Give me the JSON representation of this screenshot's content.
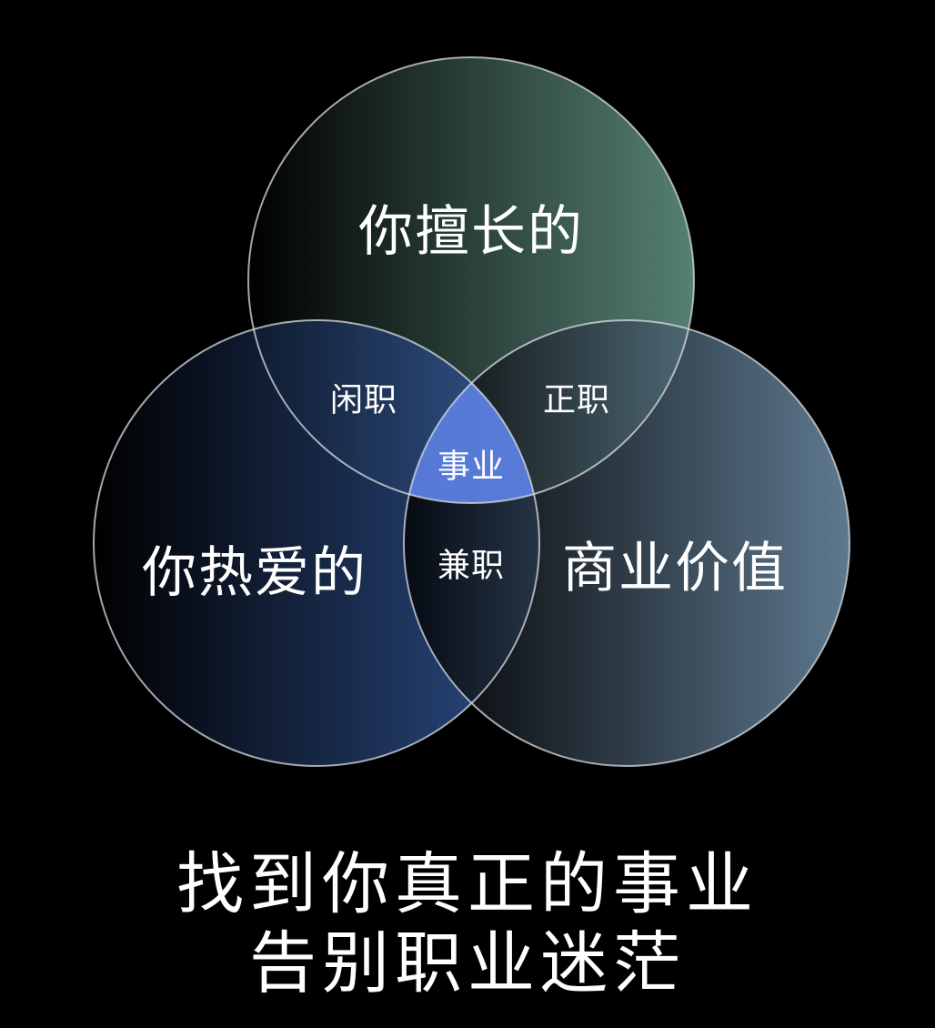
{
  "diagram": {
    "circles": {
      "top": {
        "label": "你擅长的",
        "color": "#5a877a"
      },
      "left": {
        "label": "你热爱的",
        "color": "#33599d"
      },
      "right": {
        "label": "商业价值",
        "color": "#7597b3"
      }
    },
    "overlaps": {
      "top_left": "闲职",
      "top_right": "正职",
      "left_right": "兼职",
      "center": "事业"
    },
    "center_color": "#5c7fe0"
  },
  "caption": {
    "line1": "找到你真正的事业",
    "line2": "告别职业迷茫"
  }
}
